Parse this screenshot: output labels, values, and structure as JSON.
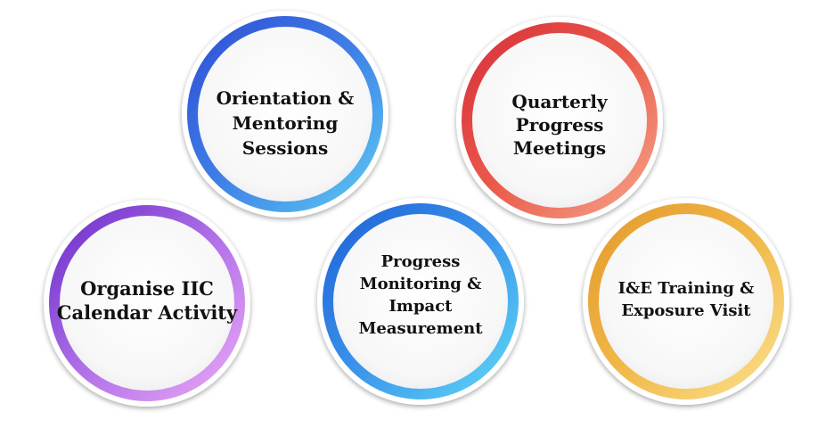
{
  "diagram": {
    "rings": [
      {
        "id": "organise",
        "lines": [
          "Organise IIC",
          "Calendar Activity"
        ],
        "colors": [
          "#6a2fc9",
          "#b06fe8",
          "#e9a8f5"
        ]
      },
      {
        "id": "orientation",
        "lines": [
          "Orientation &",
          "Mentoring",
          "Sessions"
        ],
        "colors": [
          "#2f4fd6",
          "#3f7fe6",
          "#5ccaf2"
        ]
      },
      {
        "id": "progress",
        "lines": [
          "Progress",
          "Monitoring &",
          "Impact",
          "Measurement"
        ],
        "colors": [
          "#1f62d8",
          "#3a93ea",
          "#5fd8f6"
        ]
      },
      {
        "id": "quarterly",
        "lines": [
          "Quarterly",
          "Progress",
          "Meetings"
        ],
        "colors": [
          "#d8313b",
          "#ea5a4a",
          "#f6a58a"
        ]
      },
      {
        "id": "training",
        "lines": [
          "I&E Training &",
          "Exposure Visit"
        ],
        "colors": [
          "#e49a2c",
          "#f0b848",
          "#fbe08e"
        ]
      }
    ]
  }
}
